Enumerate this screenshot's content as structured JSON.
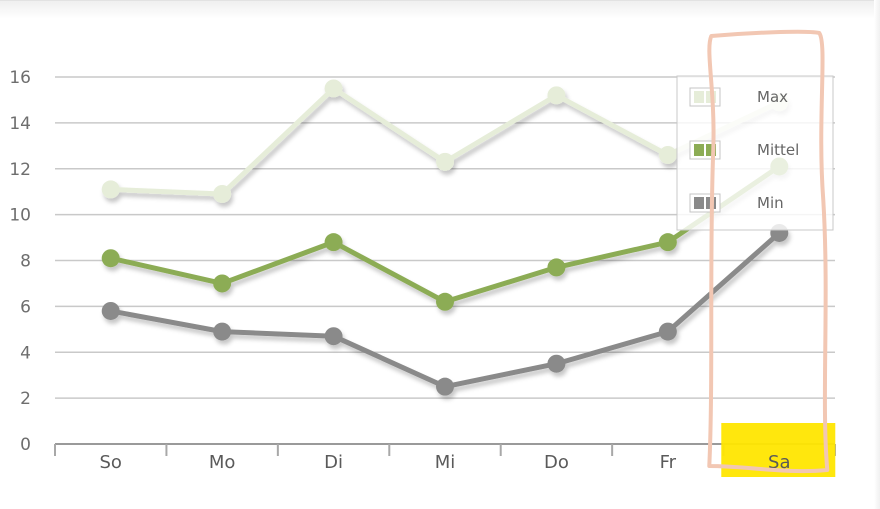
{
  "chart_data": {
    "type": "line",
    "categories": [
      "So",
      "Mo",
      "Di",
      "Mi",
      "Do",
      "Fr",
      "Sa"
    ],
    "ylim": [
      0,
      16
    ],
    "yticks": [
      "0",
      "2",
      "4",
      "6",
      "8",
      "10",
      "12",
      "14",
      "16"
    ],
    "grid": true,
    "legend_position": "top-right",
    "series": [
      {
        "name": "Max",
        "values": [
          11.1,
          10.9,
          15.5,
          12.3,
          15.2,
          12.6,
          14.9
        ],
        "color": "#e6edd9"
      },
      {
        "name": "Mittel",
        "values": [
          8.1,
          7.0,
          8.8,
          6.2,
          7.7,
          8.8,
          12.1
        ],
        "color": "#8cac55"
      },
      {
        "name": "Min",
        "values": [
          5.8,
          4.9,
          4.7,
          2.5,
          3.5,
          4.9,
          9.2
        ],
        "color": "#8a8a8a"
      }
    ],
    "annotations": {
      "highlight_color": "#ffe600",
      "outline_color": "#f2c7b3",
      "highlight_category": "Sa"
    }
  }
}
